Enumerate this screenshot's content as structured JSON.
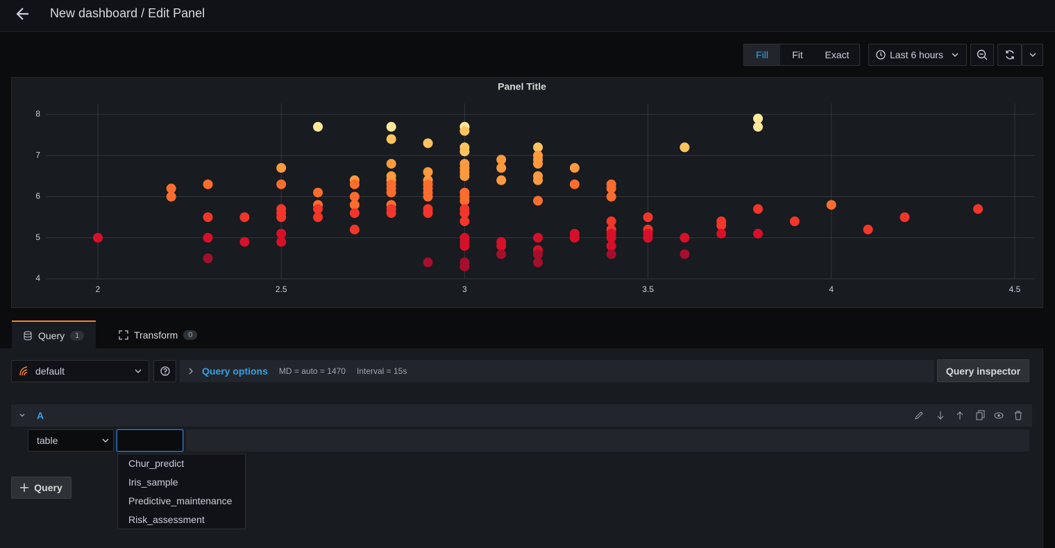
{
  "header": {
    "title": "New dashboard / Edit Panel"
  },
  "toolbar": {
    "modes": [
      "Fill",
      "Fit",
      "Exact"
    ],
    "active_mode_index": 0,
    "time_range": "Last 6 hours"
  },
  "chart_data": {
    "type": "scatter",
    "title": "Panel Title",
    "x": [
      2,
      2.2,
      2.2,
      2.3,
      2.3,
      2.3,
      2.3,
      2.4,
      2.4,
      2.5,
      2.5,
      2.5,
      2.5,
      2.5,
      2.5,
      2.5,
      2.6,
      2.6,
      2.6,
      2.6,
      2.6,
      2.7,
      2.7,
      2.7,
      2.7,
      2.7,
      2.7,
      2.8,
      2.8,
      2.8,
      2.8,
      2.8,
      2.8,
      2.8,
      2.8,
      2.8,
      2.8,
      2.8,
      2.9,
      2.9,
      2.9,
      2.9,
      2.9,
      2.9,
      2.9,
      2.9,
      2.9,
      2.9,
      3,
      3,
      3,
      3,
      3,
      3,
      3,
      3,
      3,
      3,
      3,
      3,
      3,
      3,
      3,
      3,
      3,
      3,
      3,
      3.1,
      3.1,
      3.1,
      3.1,
      3.1,
      3.1,
      3.2,
      3.2,
      3.2,
      3.2,
      3.2,
      3.2,
      3.2,
      3.2,
      3.2,
      3.2,
      3.2,
      3.3,
      3.3,
      3.3,
      3.3,
      3.4,
      3.4,
      3.4,
      3.4,
      3.4,
      3.4,
      3.4,
      3.4,
      3.4,
      3.5,
      3.5,
      3.5,
      3.5,
      3.6,
      3.6,
      3.6,
      3.7,
      3.7,
      3.7,
      3.8,
      3.8,
      3.8,
      3.8,
      3.9,
      4,
      4.1,
      4.2,
      4.4
    ],
    "values": [
      5.0,
      6.2,
      6.0,
      6.3,
      5.5,
      5.0,
      4.5,
      5.5,
      4.9,
      6.7,
      6.3,
      5.7,
      5.6,
      5.5,
      5.1,
      4.9,
      7.7,
      6.1,
      5.8,
      5.7,
      5.5,
      6.4,
      6.3,
      6.0,
      5.8,
      5.6,
      5.2,
      7.7,
      7.4,
      6.8,
      6.5,
      6.4,
      6.3,
      6.2,
      6.1,
      5.8,
      5.7,
      5.6,
      7.3,
      6.6,
      6.4,
      6.3,
      6.2,
      6.1,
      6.0,
      5.7,
      5.6,
      4.4,
      7.7,
      7.6,
      7.2,
      7.1,
      6.8,
      6.7,
      6.6,
      6.5,
      6.1,
      6.0,
      5.9,
      5.7,
      5.6,
      5.4,
      5.0,
      4.9,
      4.8,
      4.4,
      4.3,
      6.9,
      6.7,
      6.4,
      4.9,
      4.8,
      4.6,
      7.2,
      7.0,
      6.9,
      6.8,
      6.5,
      6.4,
      5.9,
      5.0,
      4.7,
      4.6,
      4.4,
      6.7,
      6.3,
      5.1,
      5.0,
      6.3,
      6.2,
      6.0,
      5.4,
      5.2,
      5.1,
      5.0,
      4.8,
      4.6,
      5.5,
      5.2,
      5.1,
      5.0,
      7.2,
      5.0,
      4.6,
      5.4,
      5.3,
      5.1,
      7.9,
      7.7,
      5.7,
      5.1,
      5.4,
      5.8,
      5.2,
      5.5,
      5.7
    ],
    "xlim": [
      1.858,
      4.555
    ],
    "ylim": [
      4,
      8.27
    ],
    "xticks": [
      2,
      2.5,
      3,
      3.5,
      4,
      4.5
    ],
    "yticks": [
      4,
      5,
      6,
      7,
      8
    ],
    "grid": true,
    "color_scale": [
      "#a50f2d",
      "#d7102a",
      "#f2362a",
      "#fb6d2e",
      "#fd9a3e",
      "#fec35f",
      "#ffe999"
    ],
    "color_range": [
      4.3,
      7.9
    ]
  },
  "tabs": [
    {
      "label": "Query",
      "count": 1
    },
    {
      "label": "Transform",
      "count": 0
    }
  ],
  "query": {
    "datasource": "default",
    "options_label": "Query options",
    "max_data_points": "MD = auto = 1470",
    "interval": "Interval = 15s",
    "inspector": "Query inspector",
    "ref_id": "A",
    "format": "table",
    "table_options": [
      "Chur_predict",
      "Iris_sample",
      "Predictive_maintenance",
      "Risk_assessment"
    ],
    "add_query": "Query"
  }
}
